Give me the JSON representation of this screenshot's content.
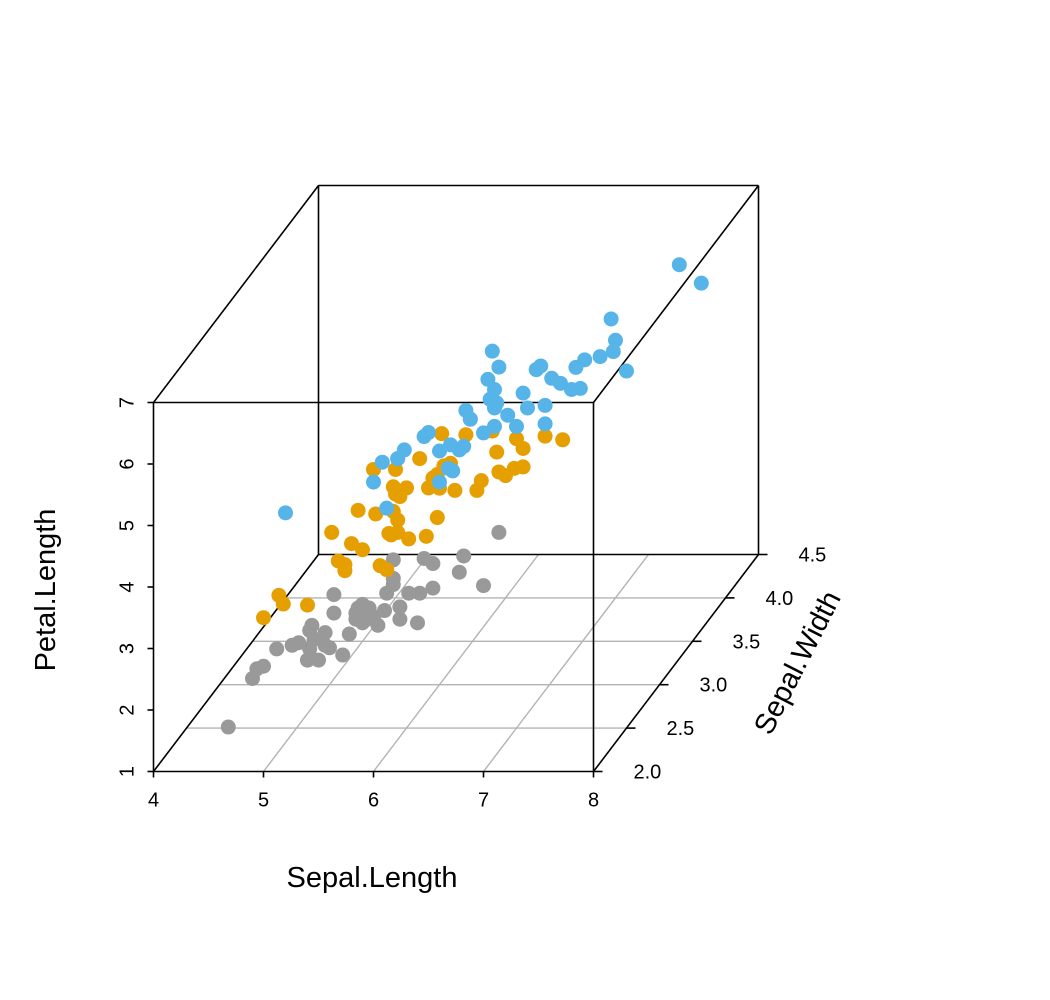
{
  "chart_data": {
    "type": "scatter",
    "projection": "3d",
    "x_axis": {
      "label": "Sepal.Length",
      "range": [
        4,
        8
      ],
      "ticks": [
        4,
        5,
        6,
        7,
        8
      ]
    },
    "y_axis": {
      "label": "Sepal.Width",
      "range": [
        2.0,
        4.5
      ],
      "ticks": [
        2.0,
        2.5,
        3.0,
        3.5,
        4.0,
        4.5
      ],
      "tick_labels": [
        "2.0",
        "2.5",
        "3.0",
        "3.5",
        "4.0",
        "4.5"
      ]
    },
    "z_axis": {
      "label": "Petal.Length",
      "range": [
        1,
        7
      ],
      "ticks": [
        1,
        2,
        3,
        4,
        5,
        6,
        7
      ]
    },
    "grid": "floor",
    "colors": {
      "setosa": "#999999",
      "versicolor": "#E69F00",
      "virginica": "#56B4E9"
    },
    "series": [
      {
        "color": "#999999",
        "points": [
          [
            5.1,
            3.5,
            1.4
          ],
          [
            4.9,
            3.0,
            1.4
          ],
          [
            4.7,
            3.2,
            1.3
          ],
          [
            4.6,
            3.1,
            1.5
          ],
          [
            5.0,
            3.6,
            1.4
          ],
          [
            5.4,
            3.9,
            1.7
          ],
          [
            4.6,
            3.4,
            1.4
          ],
          [
            5.0,
            3.4,
            1.5
          ],
          [
            4.4,
            2.9,
            1.4
          ],
          [
            4.9,
            3.1,
            1.5
          ],
          [
            5.4,
            3.7,
            1.5
          ],
          [
            4.8,
            3.4,
            1.6
          ],
          [
            4.8,
            3.0,
            1.4
          ],
          [
            4.3,
            3.0,
            1.1
          ],
          [
            5.8,
            4.0,
            1.2
          ],
          [
            5.7,
            4.4,
            1.5
          ],
          [
            5.4,
            3.9,
            1.3
          ],
          [
            5.1,
            3.5,
            1.4
          ],
          [
            5.7,
            3.8,
            1.7
          ],
          [
            5.1,
            3.8,
            1.5
          ],
          [
            5.4,
            3.4,
            1.7
          ],
          [
            5.1,
            3.7,
            1.5
          ],
          [
            4.6,
            3.6,
            1.0
          ],
          [
            5.1,
            3.3,
            1.7
          ],
          [
            4.8,
            3.4,
            1.9
          ],
          [
            5.0,
            3.0,
            1.6
          ],
          [
            5.0,
            3.4,
            1.6
          ],
          [
            5.2,
            3.5,
            1.5
          ],
          [
            5.2,
            3.4,
            1.4
          ],
          [
            4.7,
            3.2,
            1.6
          ],
          [
            4.8,
            3.1,
            1.6
          ],
          [
            5.4,
            3.4,
            1.5
          ],
          [
            5.2,
            4.1,
            1.5
          ],
          [
            5.5,
            4.2,
            1.4
          ],
          [
            4.9,
            3.1,
            1.5
          ],
          [
            5.0,
            3.2,
            1.2
          ],
          [
            5.5,
            3.5,
            1.3
          ],
          [
            4.9,
            3.6,
            1.4
          ],
          [
            4.4,
            3.0,
            1.3
          ],
          [
            5.1,
            3.4,
            1.5
          ],
          [
            5.0,
            3.5,
            1.3
          ],
          [
            4.5,
            2.3,
            1.3
          ],
          [
            4.4,
            3.2,
            1.3
          ],
          [
            5.0,
            3.5,
            1.6
          ],
          [
            5.1,
            3.8,
            1.9
          ],
          [
            4.8,
            3.0,
            1.4
          ],
          [
            5.1,
            3.8,
            1.6
          ],
          [
            4.6,
            3.2,
            1.4
          ],
          [
            5.3,
            3.7,
            1.5
          ],
          [
            5.0,
            3.3,
            1.4
          ]
        ]
      },
      {
        "color": "#E69F00",
        "points": [
          [
            7.0,
            3.2,
            4.7
          ],
          [
            6.4,
            3.2,
            4.5
          ],
          [
            6.9,
            3.1,
            4.9
          ],
          [
            5.5,
            2.3,
            4.0
          ],
          [
            6.5,
            2.8,
            4.6
          ],
          [
            5.7,
            2.8,
            4.5
          ],
          [
            6.3,
            3.3,
            4.7
          ],
          [
            4.9,
            2.4,
            3.3
          ],
          [
            6.6,
            2.9,
            4.6
          ],
          [
            5.2,
            2.7,
            3.9
          ],
          [
            5.0,
            2.0,
            3.5
          ],
          [
            5.9,
            3.0,
            4.2
          ],
          [
            6.0,
            2.2,
            4.0
          ],
          [
            6.1,
            2.9,
            4.7
          ],
          [
            5.6,
            2.9,
            3.6
          ],
          [
            6.7,
            3.1,
            4.4
          ],
          [
            5.6,
            3.0,
            4.5
          ],
          [
            5.8,
            2.7,
            4.1
          ],
          [
            6.2,
            2.2,
            4.5
          ],
          [
            5.6,
            2.5,
            3.9
          ],
          [
            5.9,
            3.2,
            4.8
          ],
          [
            6.1,
            2.8,
            4.0
          ],
          [
            6.3,
            2.5,
            4.9
          ],
          [
            6.1,
            2.8,
            4.7
          ],
          [
            6.4,
            2.9,
            4.3
          ],
          [
            6.6,
            3.0,
            4.4
          ],
          [
            6.8,
            2.8,
            4.8
          ],
          [
            6.7,
            3.0,
            5.0
          ],
          [
            6.0,
            2.9,
            4.5
          ],
          [
            5.7,
            2.6,
            3.5
          ],
          [
            5.5,
            2.4,
            3.8
          ],
          [
            5.5,
            2.4,
            3.7
          ],
          [
            5.8,
            2.7,
            3.9
          ],
          [
            6.0,
            2.7,
            5.1
          ],
          [
            5.4,
            3.0,
            4.5
          ],
          [
            6.0,
            3.4,
            4.5
          ],
          [
            6.7,
            3.1,
            4.7
          ],
          [
            6.3,
            2.3,
            4.4
          ],
          [
            5.6,
            3.0,
            4.1
          ],
          [
            5.5,
            2.5,
            4.0
          ],
          [
            5.5,
            2.6,
            4.4
          ],
          [
            6.1,
            3.0,
            4.6
          ],
          [
            5.8,
            2.6,
            4.0
          ],
          [
            5.0,
            2.3,
            3.3
          ],
          [
            5.6,
            2.7,
            4.2
          ],
          [
            5.7,
            3.0,
            4.2
          ],
          [
            5.7,
            2.9,
            4.2
          ],
          [
            6.2,
            2.9,
            4.3
          ],
          [
            5.1,
            2.5,
            3.0
          ],
          [
            5.7,
            2.8,
            4.1
          ]
        ]
      },
      {
        "color": "#56B4E9",
        "points": [
          [
            6.3,
            3.3,
            6.0
          ],
          [
            5.8,
            2.7,
            5.1
          ],
          [
            7.1,
            3.0,
            5.9
          ],
          [
            6.3,
            2.9,
            5.6
          ],
          [
            6.5,
            3.0,
            5.8
          ],
          [
            7.6,
            3.0,
            6.6
          ],
          [
            4.9,
            2.5,
            4.5
          ],
          [
            7.3,
            2.9,
            6.3
          ],
          [
            6.7,
            2.5,
            5.8
          ],
          [
            7.2,
            3.6,
            6.1
          ],
          [
            6.5,
            3.2,
            5.1
          ],
          [
            6.4,
            2.7,
            5.3
          ],
          [
            6.8,
            3.0,
            5.5
          ],
          [
            5.7,
            2.5,
            5.0
          ],
          [
            5.8,
            2.8,
            5.1
          ],
          [
            6.4,
            3.2,
            5.3
          ],
          [
            6.5,
            3.0,
            5.5
          ],
          [
            7.7,
            3.8,
            6.7
          ],
          [
            7.7,
            2.6,
            6.9
          ],
          [
            6.0,
            2.2,
            5.0
          ],
          [
            6.9,
            3.2,
            5.7
          ],
          [
            5.6,
            2.8,
            4.9
          ],
          [
            7.7,
            2.8,
            6.7
          ],
          [
            6.3,
            2.7,
            4.9
          ],
          [
            6.7,
            3.3,
            5.7
          ],
          [
            7.2,
            3.2,
            6.0
          ],
          [
            6.2,
            2.8,
            4.8
          ],
          [
            6.1,
            3.0,
            4.9
          ],
          [
            6.4,
            2.8,
            5.6
          ],
          [
            7.2,
            3.0,
            5.8
          ],
          [
            7.4,
            2.8,
            6.1
          ],
          [
            7.9,
            3.8,
            6.4
          ],
          [
            6.4,
            2.8,
            5.6
          ],
          [
            6.3,
            2.8,
            5.1
          ],
          [
            6.1,
            2.6,
            5.6
          ],
          [
            7.7,
            3.0,
            6.1
          ],
          [
            6.3,
            3.4,
            5.6
          ],
          [
            6.4,
            3.1,
            5.5
          ],
          [
            6.0,
            3.0,
            4.8
          ],
          [
            6.9,
            3.1,
            5.4
          ],
          [
            6.7,
            3.1,
            5.6
          ],
          [
            6.9,
            3.1,
            5.1
          ],
          [
            5.8,
            2.7,
            5.1
          ],
          [
            6.8,
            3.2,
            5.9
          ],
          [
            6.7,
            3.3,
            5.7
          ],
          [
            6.7,
            3.0,
            5.2
          ],
          [
            6.3,
            2.5,
            5.0
          ],
          [
            6.5,
            3.0,
            5.2
          ],
          [
            6.2,
            3.4,
            5.4
          ],
          [
            5.9,
            3.0,
            5.1
          ]
        ]
      }
    ]
  }
}
